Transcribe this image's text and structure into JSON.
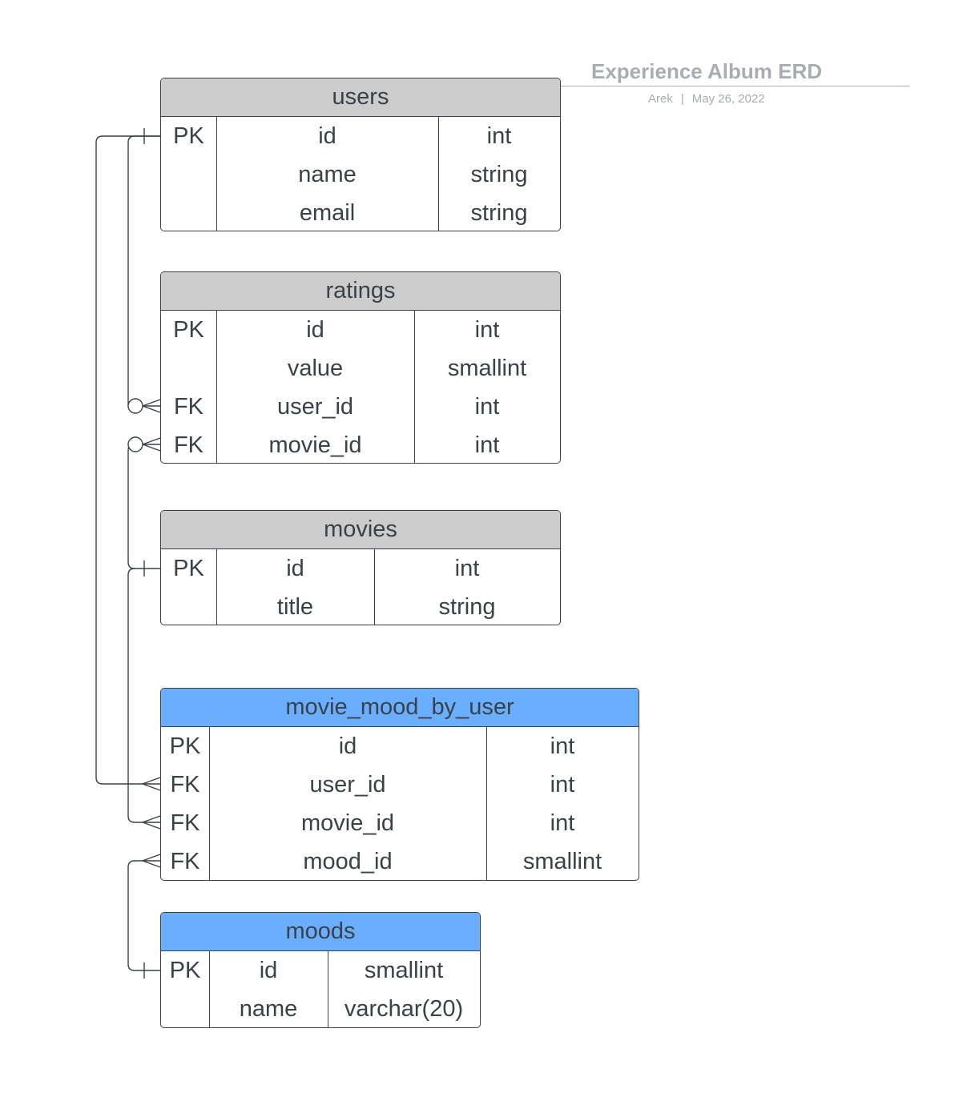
{
  "header": {
    "title": "Experience Album ERD",
    "author": "Arek",
    "separator": "|",
    "date": "May 26, 2022"
  },
  "colors": {
    "line": "#3a414a",
    "header_gray": "#cccccc",
    "header_blue": "#6aafff",
    "title_gray": "#a9adb3"
  },
  "tables": {
    "users": {
      "name": "users",
      "rows": [
        {
          "key": "PK",
          "field": "id",
          "type": "int"
        },
        {
          "key": "",
          "field": "name",
          "type": "string"
        },
        {
          "key": "",
          "field": "email",
          "type": "string"
        }
      ]
    },
    "ratings": {
      "name": "ratings",
      "rows": [
        {
          "key": "PK",
          "field": "id",
          "type": "int"
        },
        {
          "key": "",
          "field": "value",
          "type": "smallint"
        },
        {
          "key": "FK",
          "field": "user_id",
          "type": "int"
        },
        {
          "key": "FK",
          "field": "movie_id",
          "type": "int"
        }
      ]
    },
    "movies": {
      "name": "movies",
      "rows": [
        {
          "key": "PK",
          "field": "id",
          "type": "int"
        },
        {
          "key": "",
          "field": "title",
          "type": "string"
        }
      ]
    },
    "movie_mood_by_user": {
      "name": "movie_mood_by_user",
      "rows": [
        {
          "key": "PK",
          "field": "id",
          "type": "int"
        },
        {
          "key": "FK",
          "field": "user_id",
          "type": "int"
        },
        {
          "key": "FK",
          "field": "movie_id",
          "type": "int"
        },
        {
          "key": "FK",
          "field": "mood_id",
          "type": "smallint"
        }
      ]
    },
    "moods": {
      "name": "moods",
      "rows": [
        {
          "key": "PK",
          "field": "id",
          "type": "smallint"
        },
        {
          "key": "",
          "field": "name",
          "type": "varchar(20)"
        }
      ]
    }
  },
  "relationships": [
    {
      "from": "users.id",
      "to": "ratings.user_id",
      "from_end": "one",
      "to_end": "zero-or-many"
    },
    {
      "from": "movies.id",
      "to": "ratings.movie_id",
      "from_end": "one",
      "to_end": "zero-or-many"
    },
    {
      "from": "users.id",
      "to": "movie_mood_by_user.user_id",
      "from_end": "one",
      "to_end": "many"
    },
    {
      "from": "movies.id",
      "to": "movie_mood_by_user.movie_id",
      "from_end": "one",
      "to_end": "many"
    },
    {
      "from": "moods.id",
      "to": "movie_mood_by_user.mood_id",
      "from_end": "one",
      "to_end": "many"
    }
  ]
}
